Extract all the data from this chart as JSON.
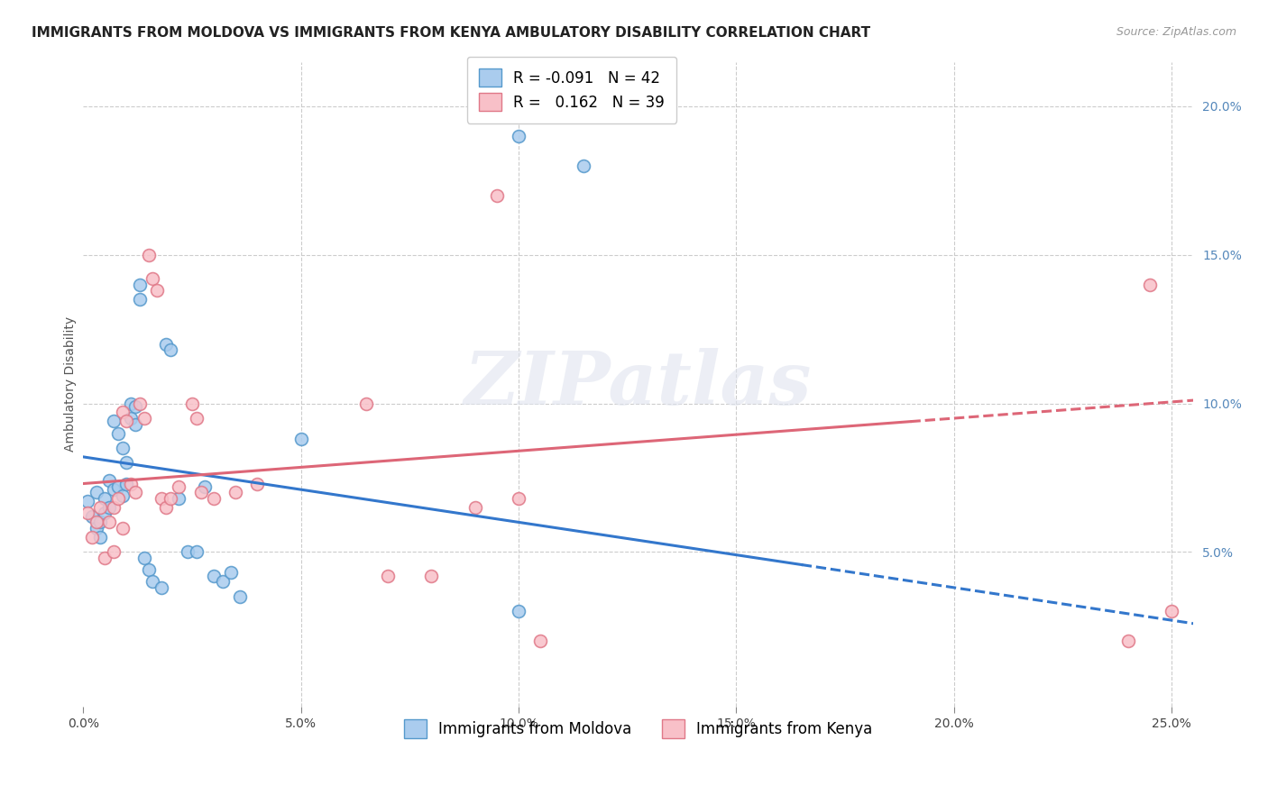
{
  "title": "IMMIGRANTS FROM MOLDOVA VS IMMIGRANTS FROM KENYA AMBULATORY DISABILITY CORRELATION CHART",
  "source": "Source: ZipAtlas.com",
  "ylabel": "Ambulatory Disability",
  "xlim": [
    0.0,
    0.255
  ],
  "ylim": [
    -0.002,
    0.215
  ],
  "xticks": [
    0.0,
    0.05,
    0.1,
    0.15,
    0.2,
    0.25
  ],
  "yticks": [
    0.05,
    0.1,
    0.15,
    0.2
  ],
  "ytick_labels": [
    "5.0%",
    "10.0%",
    "15.0%",
    "20.0%"
  ],
  "xtick_labels": [
    "0.0%",
    "5.0%",
    "10.0%",
    "15.0%",
    "20.0%",
    "25.0%"
  ],
  "moldova_color": "#aaccee",
  "moldova_edge_color": "#5599cc",
  "kenya_color": "#f8c0c8",
  "kenya_edge_color": "#e07888",
  "moldova_line_color": "#3377cc",
  "kenya_line_color": "#dd6677",
  "moldova_R": -0.091,
  "moldova_N": 42,
  "kenya_R": 0.162,
  "kenya_N": 39,
  "moldova_scatter_x": [
    0.001,
    0.002,
    0.003,
    0.003,
    0.004,
    0.004,
    0.005,
    0.005,
    0.006,
    0.006,
    0.007,
    0.007,
    0.008,
    0.008,
    0.009,
    0.009,
    0.01,
    0.01,
    0.011,
    0.011,
    0.012,
    0.012,
    0.013,
    0.013,
    0.014,
    0.015,
    0.016,
    0.018,
    0.019,
    0.02,
    0.022,
    0.024,
    0.026,
    0.028,
    0.03,
    0.032,
    0.034,
    0.036,
    0.05,
    0.1,
    0.1,
    0.115
  ],
  "moldova_scatter_y": [
    0.067,
    0.062,
    0.058,
    0.07,
    0.055,
    0.06,
    0.063,
    0.068,
    0.065,
    0.074,
    0.071,
    0.094,
    0.072,
    0.09,
    0.069,
    0.085,
    0.073,
    0.08,
    0.1,
    0.095,
    0.099,
    0.093,
    0.135,
    0.14,
    0.048,
    0.044,
    0.04,
    0.038,
    0.12,
    0.118,
    0.068,
    0.05,
    0.05,
    0.072,
    0.042,
    0.04,
    0.043,
    0.035,
    0.088,
    0.03,
    0.19,
    0.18
  ],
  "kenya_scatter_x": [
    0.001,
    0.002,
    0.003,
    0.004,
    0.005,
    0.006,
    0.007,
    0.007,
    0.008,
    0.009,
    0.009,
    0.01,
    0.011,
    0.012,
    0.013,
    0.014,
    0.015,
    0.016,
    0.017,
    0.018,
    0.019,
    0.02,
    0.022,
    0.025,
    0.026,
    0.027,
    0.03,
    0.035,
    0.04,
    0.065,
    0.07,
    0.08,
    0.09,
    0.095,
    0.1,
    0.105,
    0.24,
    0.245,
    0.25
  ],
  "kenya_scatter_y": [
    0.063,
    0.055,
    0.06,
    0.065,
    0.048,
    0.06,
    0.05,
    0.065,
    0.068,
    0.058,
    0.097,
    0.094,
    0.073,
    0.07,
    0.1,
    0.095,
    0.15,
    0.142,
    0.138,
    0.068,
    0.065,
    0.068,
    0.072,
    0.1,
    0.095,
    0.07,
    0.068,
    0.07,
    0.073,
    0.1,
    0.042,
    0.042,
    0.065,
    0.17,
    0.068,
    0.02,
    0.02,
    0.14,
    0.03
  ],
  "watermark_text": "ZIPatlas",
  "background_color": "#ffffff",
  "grid_color": "#cccccc",
  "title_fontsize": 11,
  "axis_label_fontsize": 10,
  "tick_fontsize": 10,
  "legend_fontsize": 12,
  "scatter_size": 100,
  "trend_solid_end_mol": 0.165,
  "trend_solid_end_ken": 0.19,
  "moldova_trend_intercept": 0.082,
  "moldova_trend_slope": -0.22,
  "kenya_trend_intercept": 0.073,
  "kenya_trend_slope": 0.11
}
